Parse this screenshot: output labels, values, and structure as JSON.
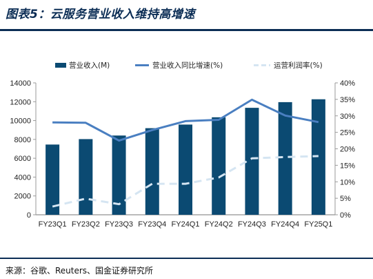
{
  "figure": {
    "title": "图表5：云服务营业收入维持高增速",
    "source": "来源：谷歌、Reuters、国金证券研究所"
  },
  "chart_data": {
    "type": "bar",
    "categories": [
      "FY23Q1",
      "FY23Q2",
      "FY23Q3",
      "FY23Q4",
      "FY24Q1",
      "FY24Q2",
      "FY24Q3",
      "FY24Q4",
      "FY25Q1"
    ],
    "series": [
      {
        "name": "营业收入(M)",
        "type": "bar",
        "axis": "left",
        "color": "#0b4a72",
        "values": [
          7454,
          8031,
          8411,
          9192,
          9574,
          10347,
          11353,
          11955,
          12260
        ]
      },
      {
        "name": "营业收入同比增速(%)",
        "type": "line",
        "axis": "right",
        "color": "#4a7fc1",
        "values": [
          28,
          27.9,
          22.5,
          25.7,
          28.4,
          28.8,
          34.9,
          30.1,
          28.1
        ]
      },
      {
        "name": "运营利润率(%)",
        "type": "line-dashed",
        "axis": "right",
        "color": "#d5e5f2",
        "values": [
          2.5,
          4.9,
          3.2,
          9.4,
          9.4,
          11.3,
          17.1,
          17.5,
          17.8
        ]
      }
    ],
    "ylim_left": [
      0,
      14000
    ],
    "yticks_left": [
      0,
      2000,
      4000,
      6000,
      8000,
      10000,
      12000,
      14000
    ],
    "ylim_right": [
      0,
      40
    ],
    "yticks_right": [
      "0%",
      "5%",
      "10%",
      "15%",
      "20%",
      "25%",
      "30%",
      "35%",
      "40%"
    ],
    "legend_position": "top",
    "grid": false
  }
}
